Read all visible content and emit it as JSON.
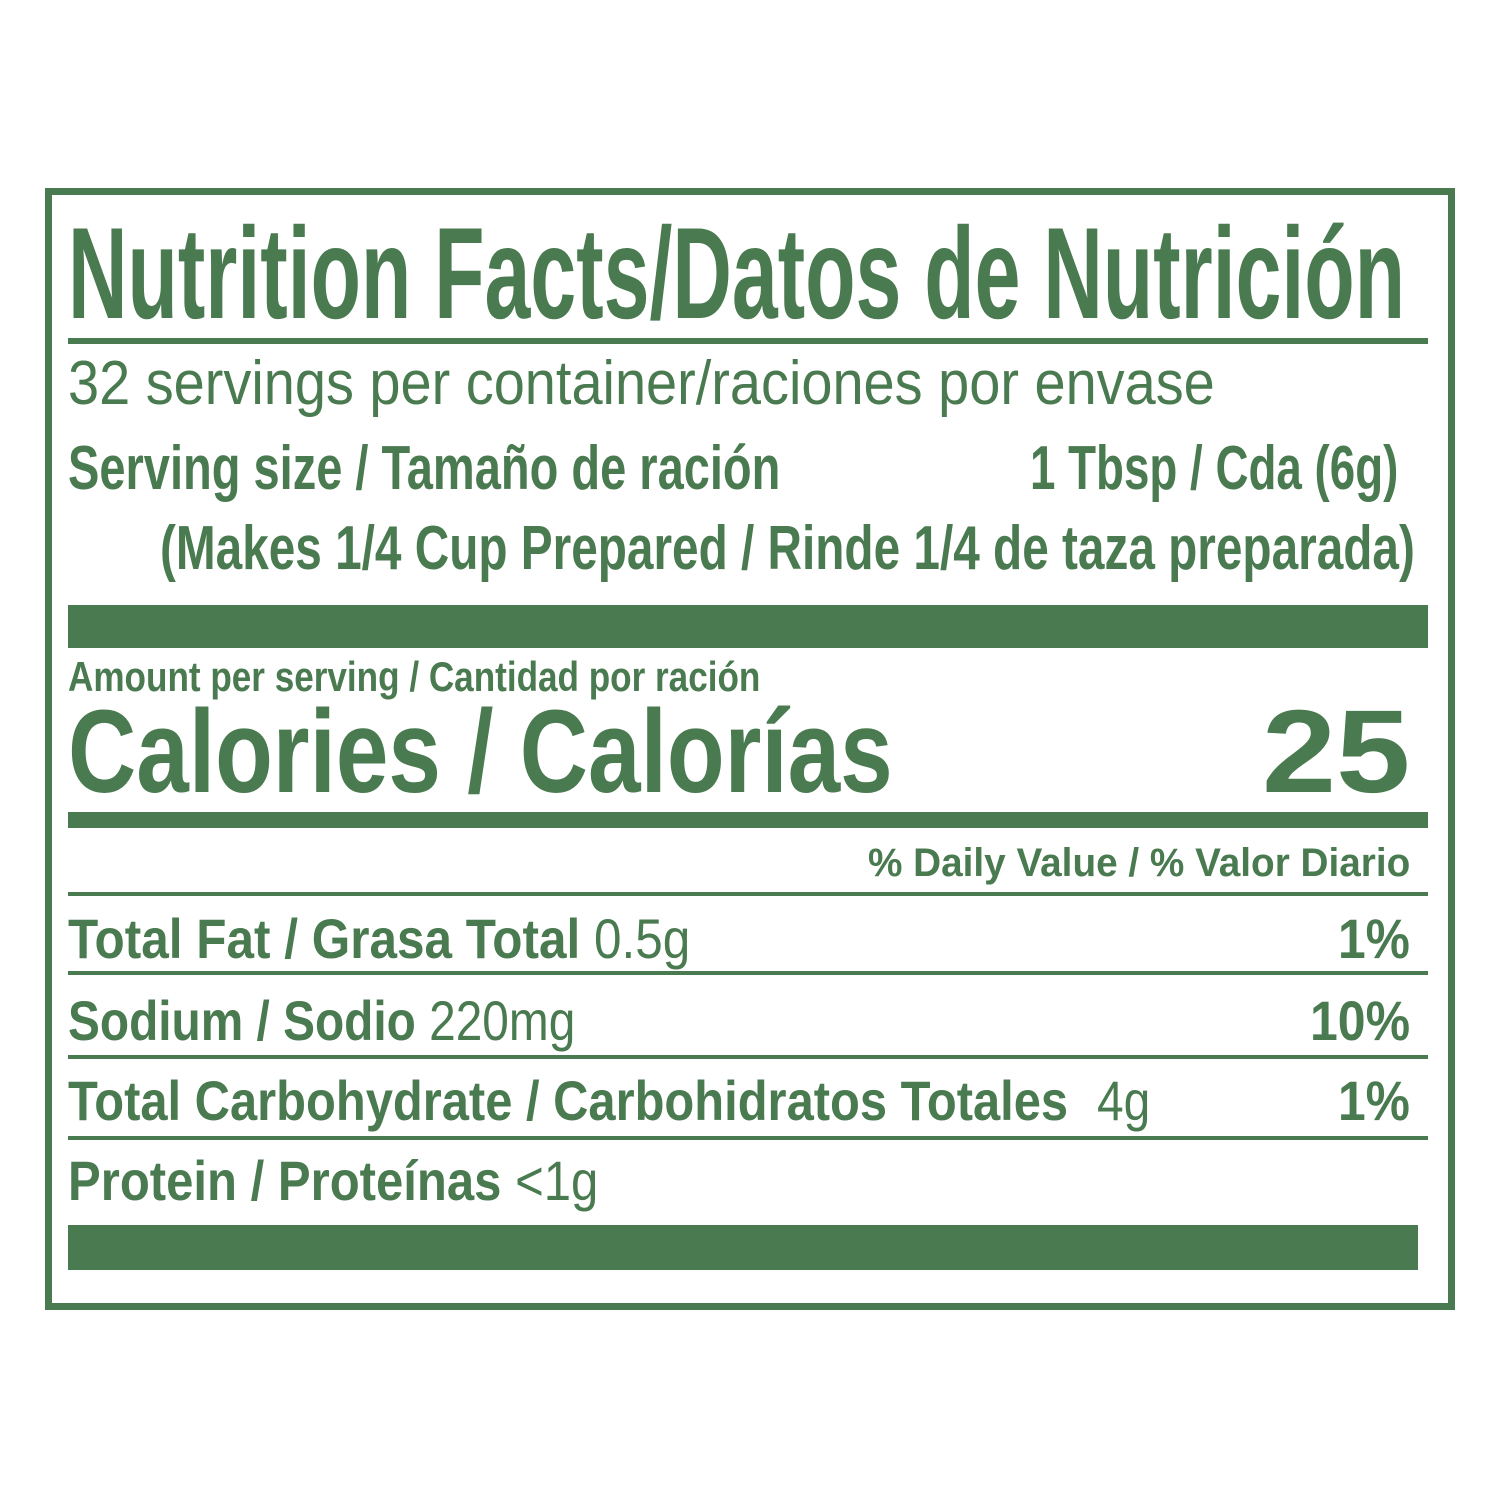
{
  "color": "#4a7a50",
  "title": "Nutrition Facts/Datos de Nutrición",
  "servings_per_container": "32 servings per container/raciones por envase",
  "serving_size": {
    "label": "Serving size / Tamaño de ración",
    "value": "1 Tbsp / Cda (6g)"
  },
  "makes": "(Makes 1/4 Cup Prepared / Rinde 1/4 de taza preparada)",
  "amount_per_serving": "Amount per serving / Cantidad por ración",
  "calories": {
    "label": "Calories / Calorías",
    "value": "25"
  },
  "daily_value_header": "% Daily Value / % Valor Diario",
  "nutrients": [
    {
      "label": "Total Fat / Grasa Total",
      "amount": "0.5g",
      "dv": "1%"
    },
    {
      "label": "Sodium / Sodio",
      "amount": "220mg",
      "dv": "10%"
    },
    {
      "label": "Total Carbohydrate / Carbohidratos Totales",
      "amount": "4g",
      "dv": "1%"
    },
    {
      "label": "Protein / Proteínas",
      "amount": "<1g",
      "dv": ""
    }
  ]
}
